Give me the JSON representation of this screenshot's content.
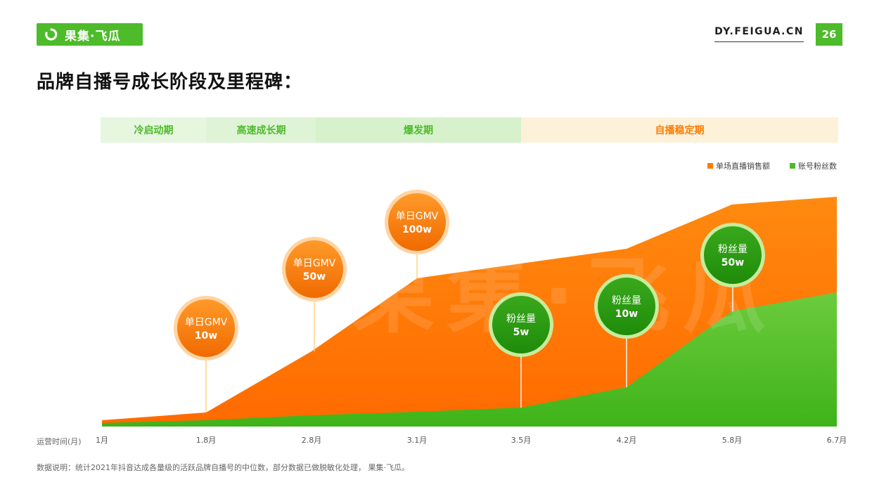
{
  "header": {
    "logo_text": "果集·飞瓜",
    "site_url": "DY.FEIGUA.CN",
    "page_number": "26"
  },
  "page_title": "品牌自播号成长阶段及里程碑：",
  "phases": [
    {
      "label": "冷启动期",
      "color": "#e6f6df",
      "text_color": "#4dbb2a"
    },
    {
      "label": "高速成长期",
      "color": "#dff3d6",
      "text_color": "#4dbb2a"
    },
    {
      "label": "爆发期",
      "color": "#d7f1cc",
      "text_color": "#4dbb2a"
    },
    {
      "label": "自播稳定期",
      "color": "#fef1d9",
      "text_color": "#ff7b00"
    }
  ],
  "legend": [
    {
      "label": "单场直播销售额",
      "color": "#ff7b00"
    },
    {
      "label": "账号粉丝数",
      "color": "#4dbb2a"
    }
  ],
  "x_axis_title": "运营时间(月)",
  "footnote": "数据说明：统计2021年抖音达成各量级的活跃品牌自播号的中位数，部分数据已做脱敏化处理，  果集·飞瓜。",
  "chart_data": {
    "type": "area",
    "x": [
      "1月",
      "1.8月",
      "2.8月",
      "3.1月",
      "3.5月",
      "4.2月",
      "5.8月",
      "6.7月"
    ],
    "series": [
      {
        "name": "单场直播销售额",
        "color": "#ff7b00"
      },
      {
        "name": "账号粉丝数",
        "color": "#4dbb2a"
      }
    ],
    "milestones": [
      {
        "line1": "单日GMV",
        "line2": "10w",
        "series": "单场直播销售额",
        "x": "1.8月"
      },
      {
        "line1": "单日GMV",
        "line2": "50w",
        "series": "单场直播销售额",
        "x": "2.8月"
      },
      {
        "line1": "单日GMV",
        "line2": "100w",
        "series": "单场直播销售额",
        "x": "3.1月"
      },
      {
        "line1": "粉丝量",
        "line2": "5w",
        "series": "账号粉丝数",
        "x": "3.5月"
      },
      {
        "line1": "粉丝量",
        "line2": "10w",
        "series": "账号粉丝数",
        "x": "4.2月"
      },
      {
        "line1": "粉丝量",
        "line2": "50w",
        "series": "账号粉丝数",
        "x": "5.8月"
      }
    ],
    "watermark": "果集·飞瓜"
  }
}
